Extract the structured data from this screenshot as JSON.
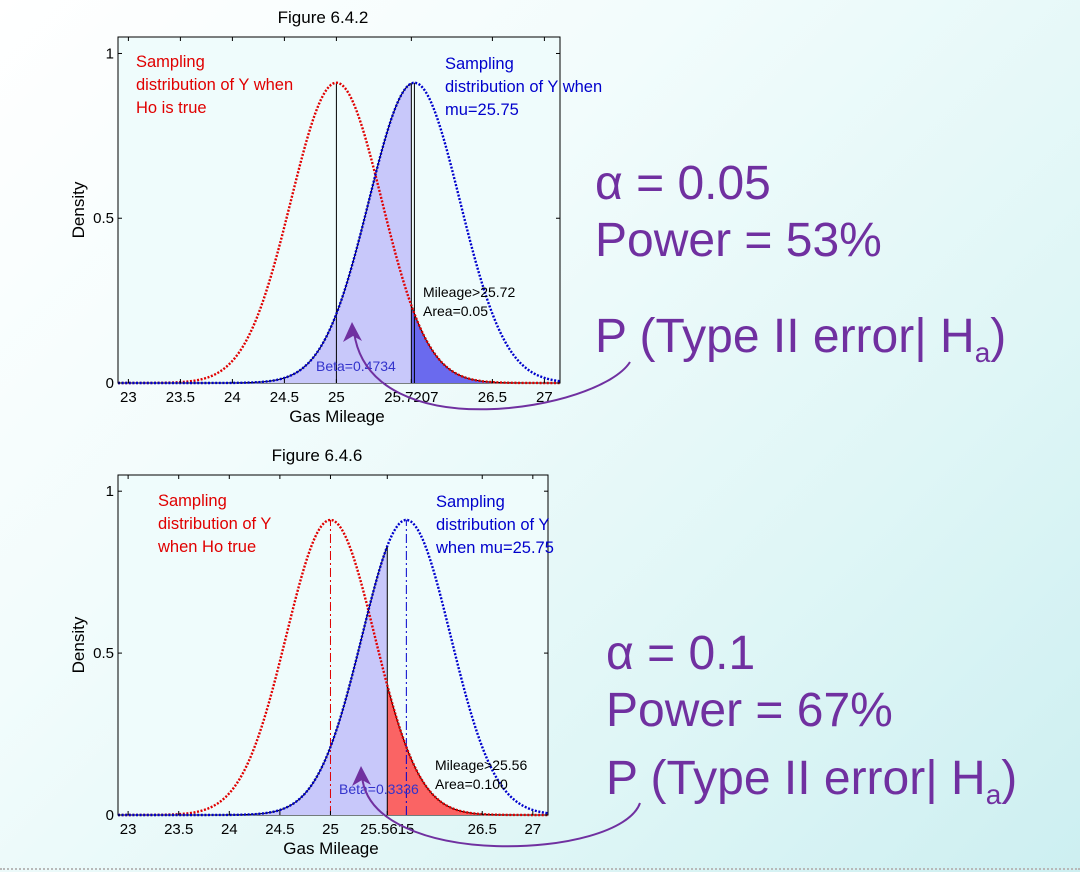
{
  "chart_data": [
    {
      "type": "line",
      "title": "Figure 6.4.2",
      "xlabel": "Gas Mileage",
      "ylabel": "Density",
      "xlim": [
        22.9,
        27.15
      ],
      "ylim": [
        0,
        1.05
      ],
      "x_ticks": [
        "23",
        "23.5",
        "24",
        "24.5",
        "25",
        "25.7207",
        "26.5",
        "27"
      ],
      "x_tick_values": [
        23,
        23.5,
        24,
        24.5,
        25,
        25.7207,
        26.5,
        27
      ],
      "y_ticks": [
        "0",
        "0.5",
        "1"
      ],
      "y_tick_values": [
        0,
        0.5,
        1
      ],
      "series": [
        {
          "name": "Sampling distribution of Y when Ho is true",
          "mean": 25.0,
          "sd": 0.4378,
          "color": "#e00000",
          "style": "dotted"
        },
        {
          "name": "Sampling distribution of Y when mu=25.75",
          "mean": 25.75,
          "sd": 0.4378,
          "color": "#0000cc",
          "style": "dotted"
        }
      ],
      "critical_value": 25.7207,
      "mean_line_style": "solid",
      "beta_fill_color": "#c8c8fa",
      "alpha_fill_color": "#6a6aee",
      "annotations": {
        "red_label": [
          "Sampling",
          "distribution of Y when",
          "Ho is true"
        ],
        "blue_label": [
          "Sampling",
          "distribution of Y when",
          "mu=25.75"
        ],
        "mileage": "Mileage>25.72",
        "area": "Area=0.05",
        "beta": "Beta=0.4734"
      }
    },
    {
      "type": "line",
      "title": "Figure 6.4.6",
      "xlabel": "Gas Mileage",
      "ylabel": "Density",
      "xlim": [
        22.9,
        27.15
      ],
      "ylim": [
        0,
        1.05
      ],
      "x_ticks": [
        "23",
        "23.5",
        "24",
        "24.5",
        "25",
        "25.5615",
        "26.5",
        "27"
      ],
      "x_tick_values": [
        23,
        23.5,
        24,
        24.5,
        25,
        25.5615,
        26.5,
        27
      ],
      "y_ticks": [
        "0",
        "0.5",
        "1"
      ],
      "y_tick_values": [
        0,
        0.5,
        1
      ],
      "series": [
        {
          "name": "Sampling distribution of Y when Ho true",
          "mean": 25.0,
          "sd": 0.4378,
          "color": "#e00000",
          "style": "dotted"
        },
        {
          "name": "Sampling distribution of Y when mu=25.75",
          "mean": 25.75,
          "sd": 0.4378,
          "color": "#0000cc",
          "style": "dotted"
        }
      ],
      "critical_value": 25.5615,
      "mean_line_style": "dashdot",
      "beta_fill_color": "#c8c8fa",
      "alpha_fill_color": "#fa6464",
      "annotations": {
        "red_label": [
          "Sampling",
          "distribution of Y",
          "when Ho true"
        ],
        "blue_label": [
          "Sampling",
          "distribution of Y",
          "when mu=25.75"
        ],
        "mileage": "Mileage>25.56",
        "area": "Area=0.100",
        "beta": "Beta=0.3336"
      }
    }
  ],
  "callouts": [
    {
      "alpha": "α = 0.05",
      "power": "Power = 53%",
      "perror": "P (Type II error| H",
      "perror_sub": "a",
      "perror_close": ")"
    },
    {
      "alpha": "α = 0.1",
      "power": "Power = 67%",
      "perror": "P (Type II error| H",
      "perror_sub": "a",
      "perror_close": ")"
    }
  ],
  "colors": {
    "callout": "#7030a0",
    "plot_bg": "#effcfc"
  }
}
